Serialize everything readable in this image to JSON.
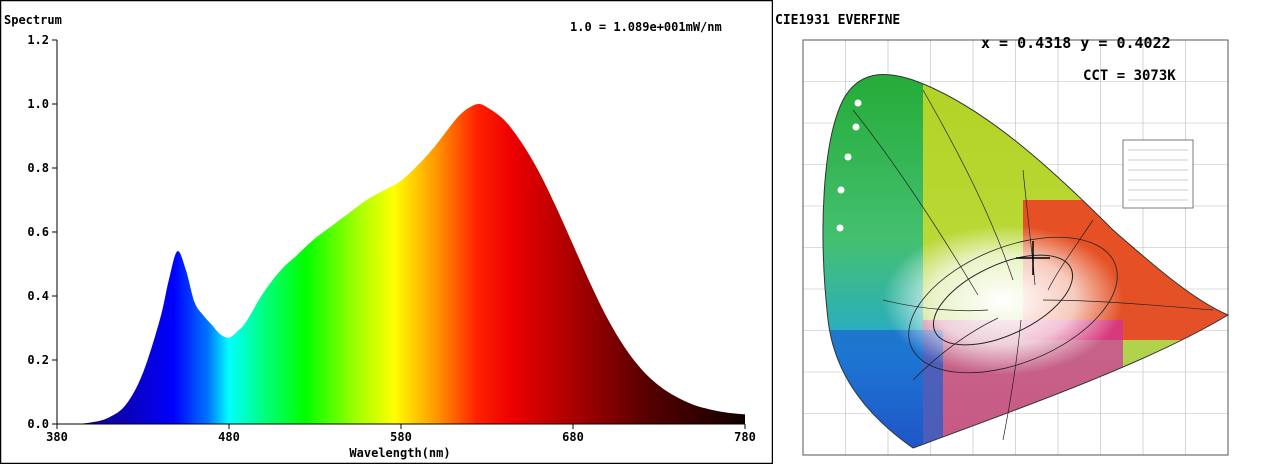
{
  "spectrum": {
    "title": "Spectrum",
    "scale_note": "1.0 = 1.089e+001mW/nm",
    "xlabel": "Wavelength(nm)",
    "xticks": [
      "380",
      "480",
      "580",
      "680",
      "780"
    ],
    "yticks": [
      "0.0",
      "0.2",
      "0.4",
      "0.6",
      "0.8",
      "1.0",
      "1.2"
    ]
  },
  "chart_data": [
    {
      "type": "area",
      "title": "Spectrum",
      "xlabel": "Wavelength(nm)",
      "ylabel": "",
      "xlim": [
        380,
        780
      ],
      "ylim": [
        0,
        1.2
      ],
      "x": [
        380,
        390,
        400,
        410,
        420,
        430,
        440,
        445,
        450,
        455,
        460,
        465,
        470,
        475,
        480,
        485,
        490,
        500,
        510,
        520,
        530,
        540,
        550,
        560,
        570,
        580,
        590,
        600,
        610,
        615,
        620,
        625,
        630,
        640,
        650,
        660,
        670,
        680,
        690,
        700,
        710,
        720,
        730,
        740,
        750,
        760,
        770,
        780
      ],
      "series": [
        {
          "values": [
            0.0,
            0.0,
            0.005,
            0.02,
            0.06,
            0.16,
            0.33,
            0.45,
            0.54,
            0.48,
            0.38,
            0.34,
            0.31,
            0.28,
            0.27,
            0.29,
            0.32,
            0.41,
            0.48,
            0.53,
            0.58,
            0.62,
            0.66,
            0.7,
            0.73,
            0.76,
            0.81,
            0.87,
            0.94,
            0.97,
            0.99,
            1.0,
            0.99,
            0.95,
            0.88,
            0.79,
            0.68,
            0.56,
            0.44,
            0.33,
            0.24,
            0.17,
            0.12,
            0.085,
            0.06,
            0.045,
            0.035,
            0.03
          ]
        }
      ]
    },
    {
      "type": "scatter",
      "title": "CIE1931  EVERFINE",
      "x": [
        0.4318
      ],
      "y": [
        0.4022
      ]
    }
  ],
  "cie": {
    "title": "CIE1931  EVERFINE",
    "xy_readout": "x = 0.4318 y = 0.4022",
    "cct_readout": "CCT = 3073K"
  }
}
